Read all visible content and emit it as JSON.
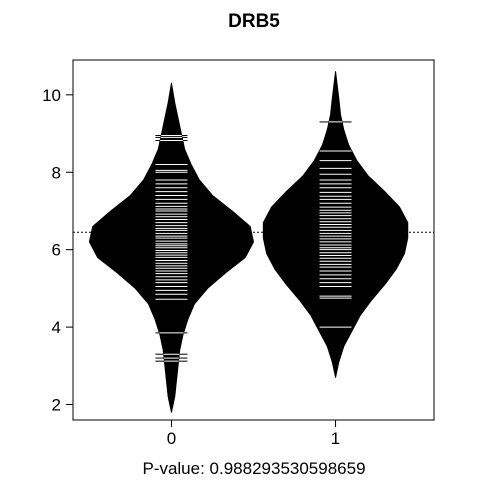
{
  "chart_data": {
    "type": "beanplot",
    "title": "DRB5",
    "xlabel": "P-value: 0.988293530598659",
    "ylabel": "",
    "categories": [
      "0",
      "1"
    ],
    "yticks": [
      2,
      4,
      6,
      8,
      10
    ],
    "xlim": [
      -0.6,
      1.6
    ],
    "ylim": [
      1.6,
      10.9
    ],
    "overall_mean": 6.45,
    "grid": false,
    "legend": "none",
    "colors": {
      "bean": "#000000",
      "lines": "#ffffff",
      "frame": "#000000"
    },
    "series": [
      {
        "category": "0",
        "mean": 6.45,
        "range": [
          1.8,
          10.3
        ],
        "density": [
          [
            1.8,
            0.0
          ],
          [
            2.2,
            0.02
          ],
          [
            2.6,
            0.03
          ],
          [
            3.0,
            0.04
          ],
          [
            3.4,
            0.05
          ],
          [
            3.8,
            0.07
          ],
          [
            4.2,
            0.1
          ],
          [
            4.6,
            0.14
          ],
          [
            5.0,
            0.22
          ],
          [
            5.4,
            0.33
          ],
          [
            5.8,
            0.45
          ],
          [
            6.2,
            0.5
          ],
          [
            6.6,
            0.48
          ],
          [
            7.0,
            0.37
          ],
          [
            7.4,
            0.25
          ],
          [
            7.8,
            0.17
          ],
          [
            8.2,
            0.12
          ],
          [
            8.6,
            0.08
          ],
          [
            9.0,
            0.06
          ],
          [
            9.4,
            0.04
          ],
          [
            9.8,
            0.02
          ],
          [
            10.3,
            0.0
          ]
        ],
        "observations": [
          3.12,
          3.2,
          3.3,
          3.85,
          4.72,
          4.85,
          4.95,
          5.05,
          5.15,
          5.22,
          5.3,
          5.38,
          5.45,
          5.52,
          5.58,
          5.65,
          5.72,
          5.8,
          5.86,
          5.92,
          5.98,
          6.05,
          6.1,
          6.15,
          6.22,
          6.3,
          6.35,
          6.42,
          6.5,
          6.55,
          6.62,
          6.7,
          6.78,
          6.85,
          6.92,
          7.0,
          7.05,
          7.12,
          7.2,
          7.3,
          7.4,
          7.5,
          7.6,
          7.7,
          7.8,
          8.0,
          8.05,
          8.2,
          8.82,
          8.9,
          8.95
        ]
      },
      {
        "category": "1",
        "mean": 6.45,
        "range": [
          2.7,
          10.6
        ],
        "density": [
          [
            2.7,
            0.0
          ],
          [
            3.1,
            0.02
          ],
          [
            3.5,
            0.05
          ],
          [
            3.9,
            0.1
          ],
          [
            4.3,
            0.15
          ],
          [
            4.7,
            0.22
          ],
          [
            5.1,
            0.3
          ],
          [
            5.5,
            0.37
          ],
          [
            5.9,
            0.42
          ],
          [
            6.3,
            0.44
          ],
          [
            6.7,
            0.44
          ],
          [
            7.1,
            0.39
          ],
          [
            7.5,
            0.3
          ],
          [
            7.9,
            0.2
          ],
          [
            8.3,
            0.13
          ],
          [
            8.7,
            0.08
          ],
          [
            9.1,
            0.05
          ],
          [
            9.5,
            0.03
          ],
          [
            9.9,
            0.02
          ],
          [
            10.6,
            0.0
          ]
        ],
        "observations": [
          4.0,
          4.75,
          4.8,
          5.05,
          5.15,
          5.25,
          5.35,
          5.45,
          5.55,
          5.62,
          5.7,
          5.78,
          5.85,
          5.92,
          6.0,
          6.05,
          6.12,
          6.2,
          6.28,
          6.35,
          6.42,
          6.5,
          6.58,
          6.65,
          6.72,
          6.8,
          6.88,
          6.95,
          7.02,
          7.1,
          7.2,
          7.3,
          7.38,
          7.48,
          7.6,
          7.7,
          7.8,
          7.95,
          8.1,
          8.3,
          8.55,
          9.3
        ]
      }
    ]
  }
}
